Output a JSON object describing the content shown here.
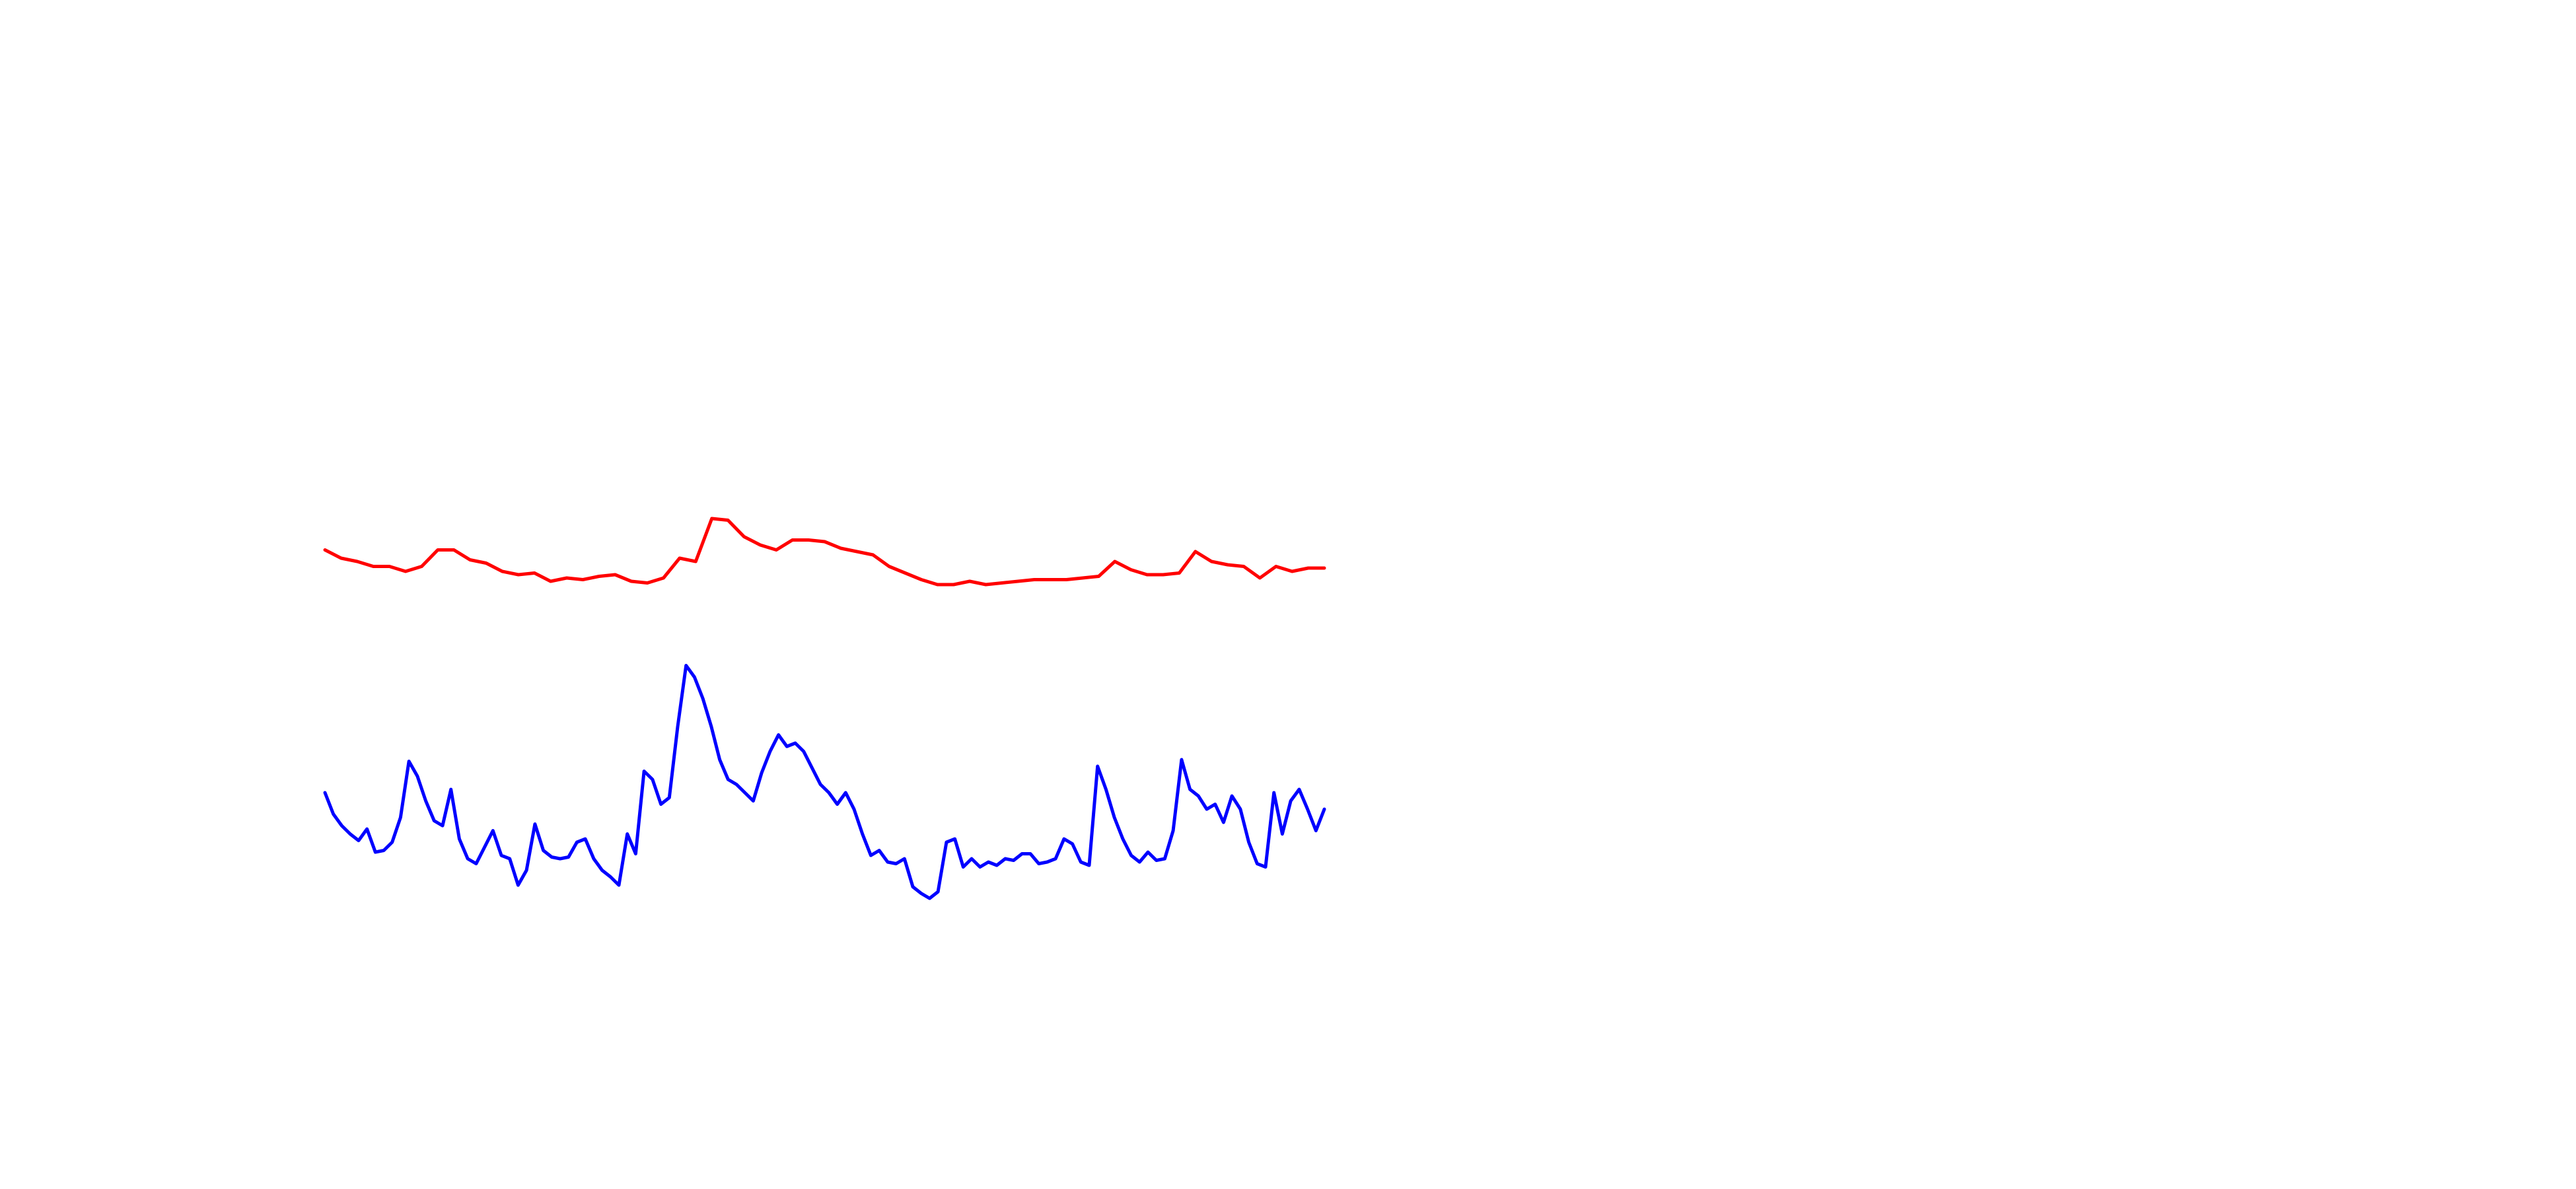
{
  "chart_data": {
    "type": "line",
    "ylim": [
      0,
      720
    ],
    "series": [
      {
        "color": "#ff0000",
        "values": [
          387,
          382,
          380,
          377,
          377,
          374,
          377,
          387,
          387,
          381,
          379,
          374,
          372,
          373,
          368,
          370,
          369,
          371,
          372,
          368,
          367,
          370,
          382,
          380,
          406,
          405,
          395,
          390,
          387,
          393,
          393,
          392,
          388,
          386,
          384,
          377,
          373,
          369,
          366,
          366,
          368,
          366,
          367,
          368,
          369,
          369,
          369,
          370,
          371,
          380,
          375,
          372,
          372,
          373,
          386,
          380,
          378,
          377,
          370,
          377,
          374,
          376,
          376
        ]
      },
      {
        "color": "#0000ff",
        "values": [
          240,
          227,
          220,
          215,
          211,
          218,
          204,
          205,
          210,
          225,
          259,
          250,
          235,
          223,
          220,
          242,
          212,
          200,
          197,
          207,
          217,
          202,
          200,
          184,
          193,
          221,
          205,
          201,
          200,
          201,
          210,
          212,
          200,
          193,
          189,
          184,
          215,
          203,
          253,
          248,
          233,
          237,
          280,
          317,
          310,
          297,
          280,
          260,
          248,
          245,
          240,
          235,
          252,
          265,
          275,
          268,
          270,
          265,
          255,
          245,
          240,
          233,
          240,
          230,
          215,
          202,
          205,
          198,
          197,
          200,
          183,
          179,
          176,
          180,
          210,
          212,
          195,
          200,
          195,
          198,
          196,
          200,
          199,
          203,
          203,
          197,
          198,
          200,
          212,
          209,
          198,
          196,
          256,
          242,
          225,
          212,
          202,
          198,
          204,
          199,
          200,
          217,
          260,
          242,
          238,
          230,
          233,
          222,
          238,
          230,
          210,
          197,
          195,
          240,
          215,
          235,
          242,
          230,
          217,
          230
        ]
      }
    ]
  }
}
